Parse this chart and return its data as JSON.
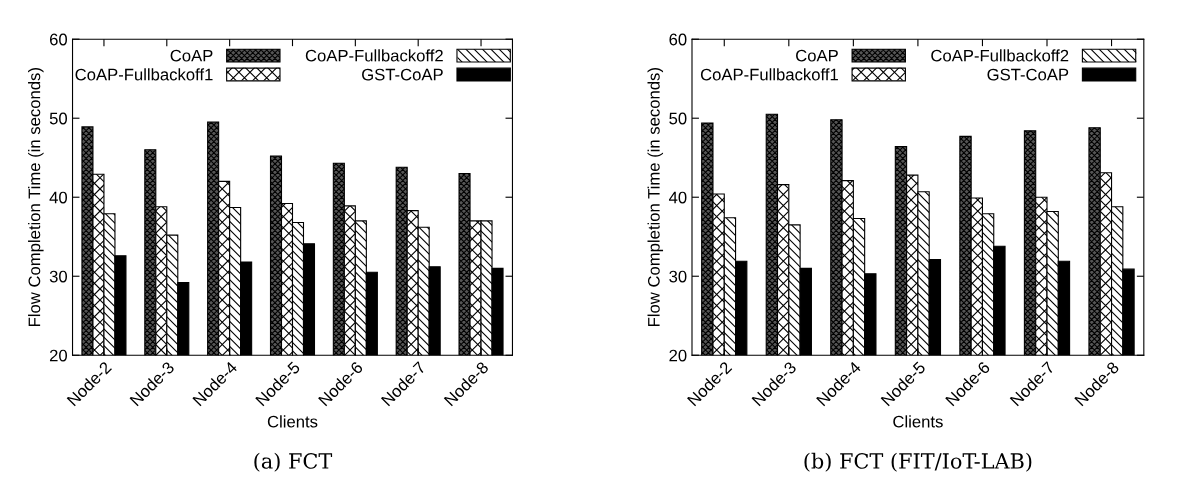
{
  "chart_data": [
    {
      "type": "bar",
      "xlabel": "Clients",
      "ylabel": "Flow Completion Time (in seconds)",
      "categories": [
        "Node-2",
        "Node-3",
        "Node-4",
        "Node-5",
        "Node-6",
        "Node-7",
        "Node-8"
      ],
      "series": [
        {
          "name": "CoAP",
          "color": "#555555",
          "values": [
            48.9,
            46.0,
            49.5,
            45.2,
            44.3,
            43.8,
            43.0
          ]
        },
        {
          "name": "CoAP-Fullbackoff1",
          "color": "#ffffff",
          "values": [
            42.9,
            38.8,
            42.0,
            39.2,
            38.9,
            38.3,
            37.0
          ]
        },
        {
          "name": "CoAP-Fullbackoff2",
          "color": "#ffffff",
          "values": [
            37.9,
            35.2,
            38.7,
            36.8,
            37.0,
            36.2,
            37.0
          ]
        },
        {
          "name": "GST-CoAP",
          "color": "#000000",
          "values": [
            32.6,
            29.2,
            31.8,
            34.1,
            30.5,
            31.2,
            31.0
          ]
        }
      ],
      "ylim": [
        20,
        60
      ],
      "yticks": [
        20,
        30,
        40,
        50,
        60
      ],
      "legend": "top",
      "grid": false,
      "annotations": [
        "(a) FCT"
      ]
    },
    {
      "type": "bar",
      "xlabel": "Clients",
      "ylabel": "Flow Completion Time (in seconds)",
      "categories": [
        "Node-2",
        "Node-3",
        "Node-4",
        "Node-5",
        "Node-6",
        "Node-7",
        "Node-8"
      ],
      "series": [
        {
          "name": "CoAP",
          "color": "#555555",
          "values": [
            49.4,
            50.5,
            49.8,
            46.4,
            47.7,
            48.4,
            48.8
          ]
        },
        {
          "name": "CoAP-Fullbackoff1",
          "color": "#ffffff",
          "values": [
            40.4,
            41.6,
            42.1,
            42.8,
            39.9,
            40.0,
            43.1
          ]
        },
        {
          "name": "CoAP-Fullbackoff2",
          "color": "#ffffff",
          "values": [
            37.4,
            36.5,
            37.3,
            40.7,
            37.9,
            38.2,
            38.8
          ]
        },
        {
          "name": "GST-CoAP",
          "color": "#000000",
          "values": [
            31.9,
            31.0,
            30.3,
            32.1,
            33.8,
            31.9,
            30.9
          ]
        }
      ],
      "ylim": [
        20,
        60
      ],
      "yticks": [
        20,
        30,
        40,
        50,
        60
      ],
      "legend": "top",
      "grid": false,
      "annotations": [
        "(b) FCT (FIT/IoT-LAB)"
      ]
    }
  ]
}
